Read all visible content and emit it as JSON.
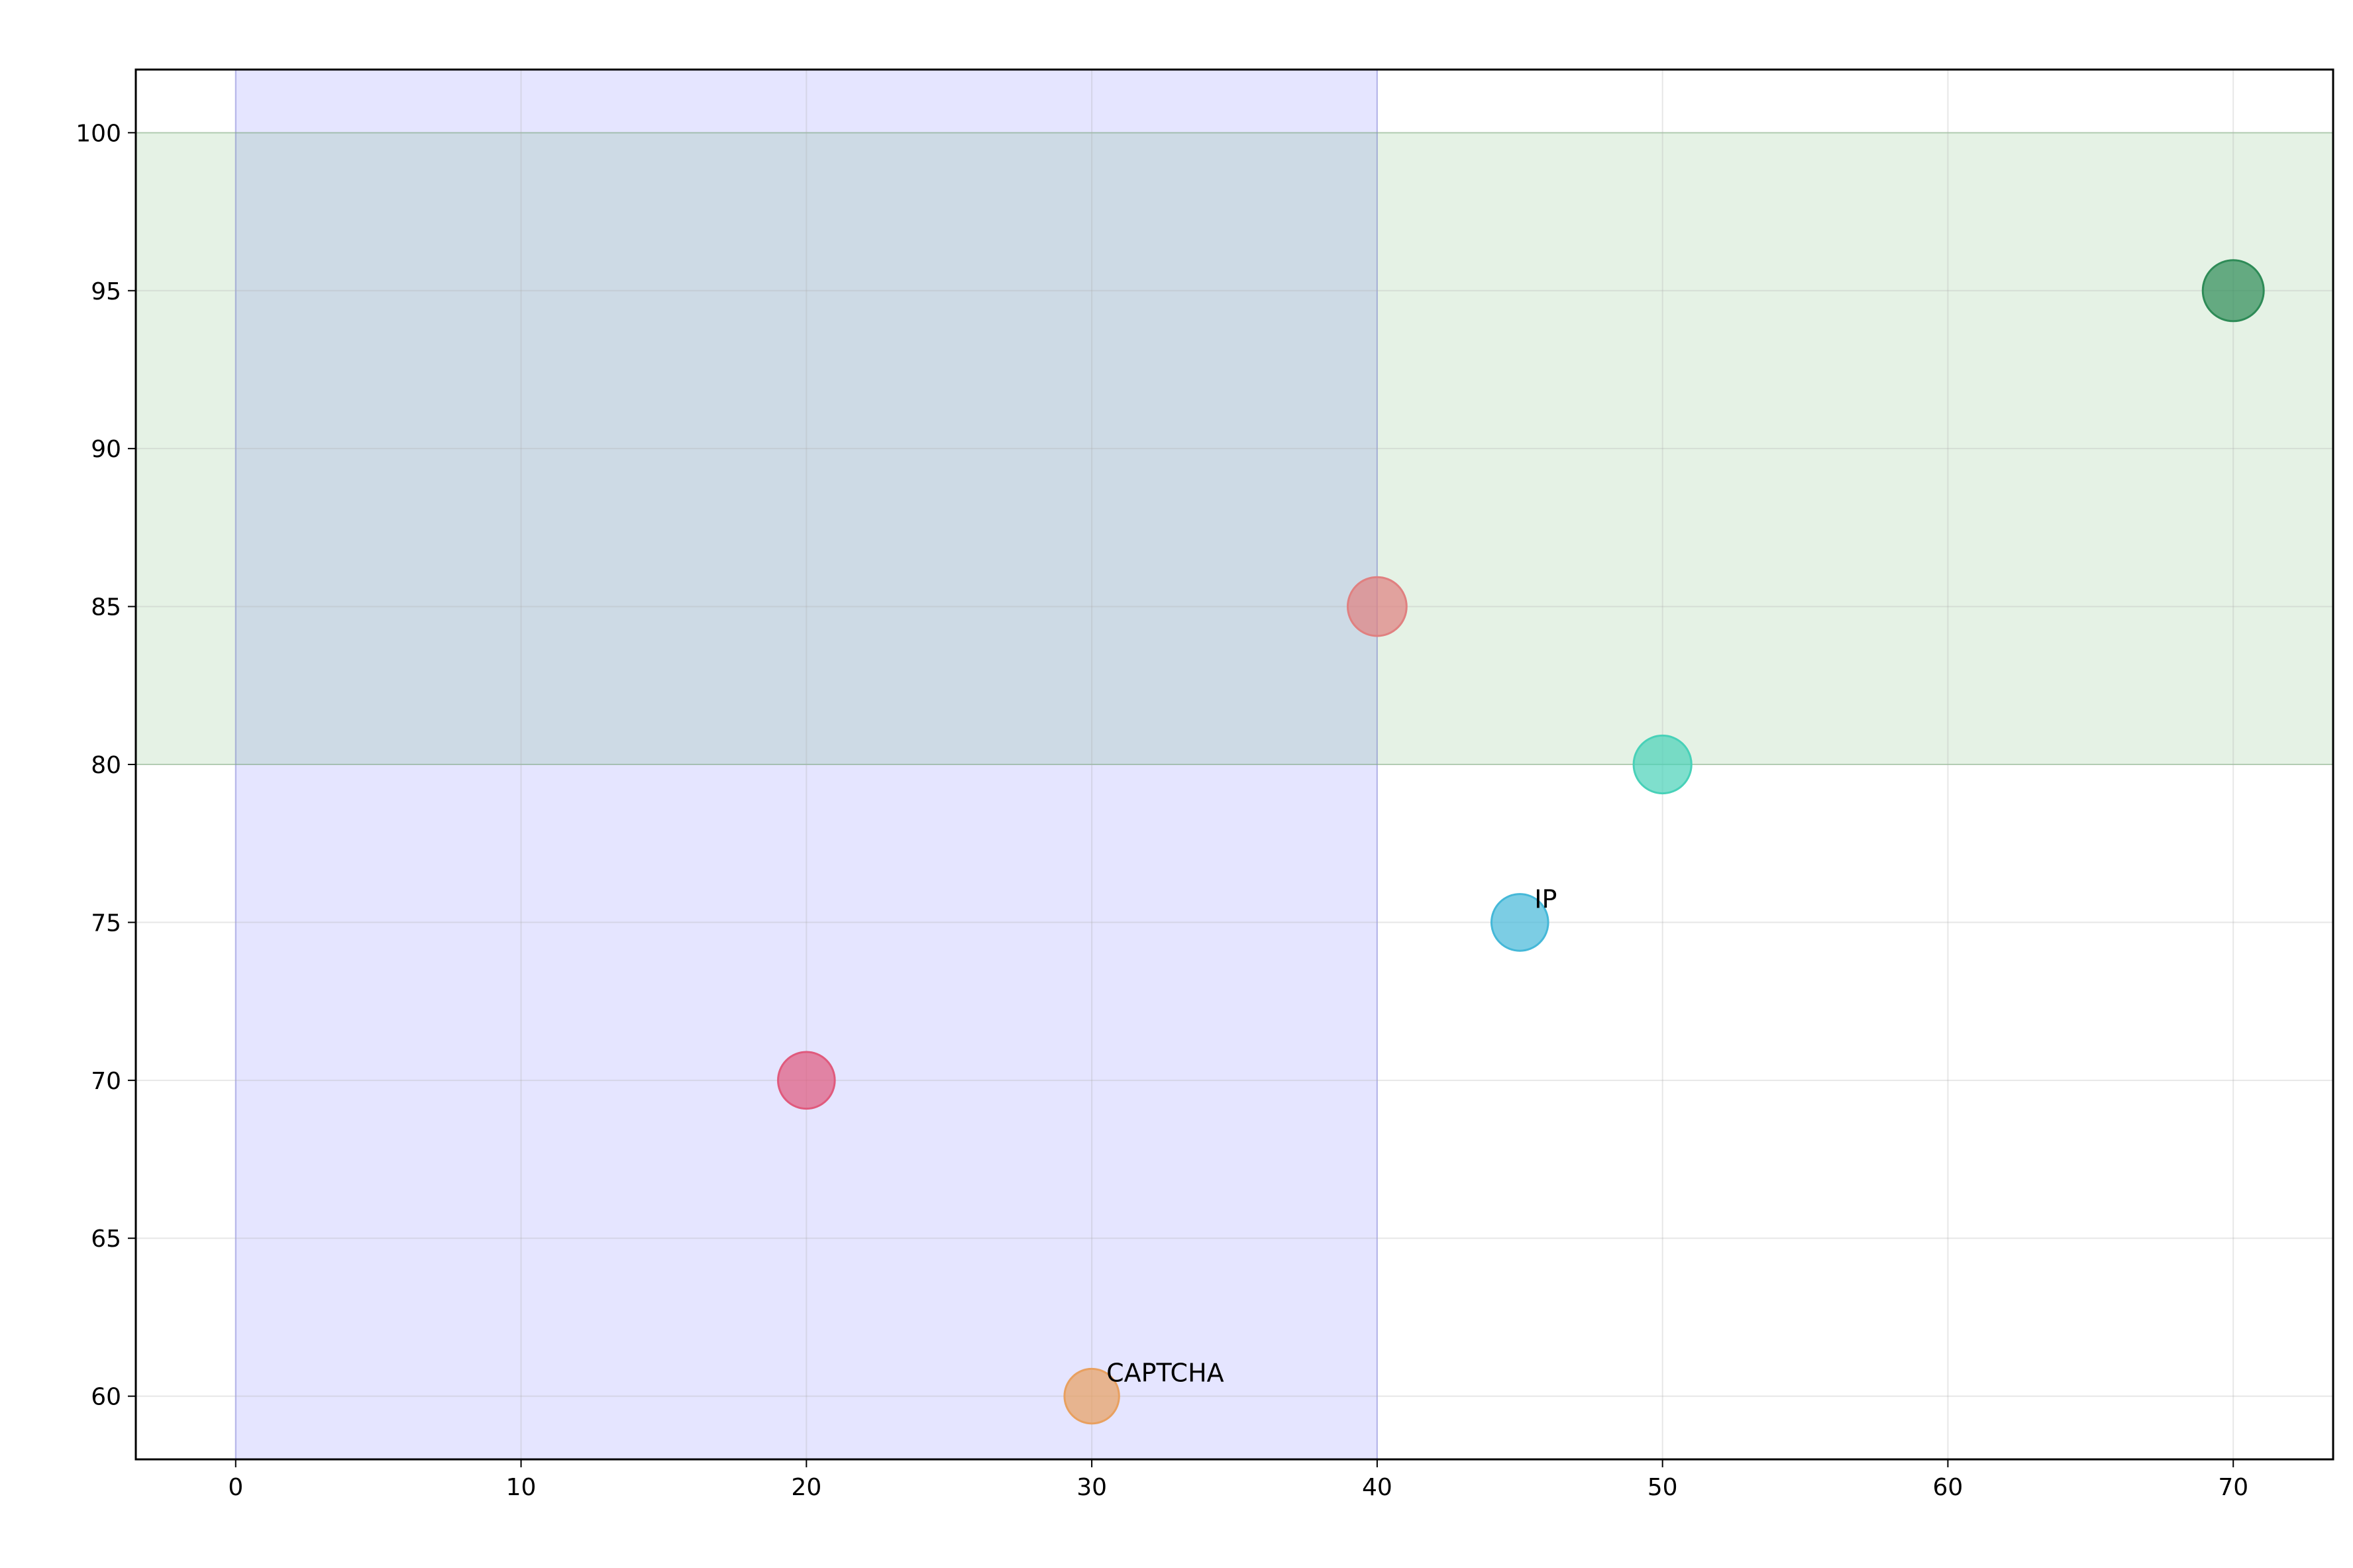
{
  "chart_data": {
    "type": "scatter",
    "title": "",
    "xlabel": "",
    "ylabel": "",
    "xlim": [
      -3.5,
      73.5
    ],
    "ylim": [
      58,
      102
    ],
    "xticks": [
      0,
      10,
      20,
      30,
      40,
      50,
      60,
      70
    ],
    "yticks": [
      60,
      65,
      70,
      75,
      80,
      85,
      90,
      95,
      100
    ],
    "grid": true,
    "shaded_regions": [
      {
        "axis": "x",
        "from": 0,
        "to": 40,
        "color": "#0000ff"
      },
      {
        "axis": "y",
        "from": 80,
        "to": 100,
        "color": "#008000"
      }
    ],
    "points": [
      {
        "label": "",
        "x": 70,
        "y": 95,
        "size": 1.0,
        "color": "#2e8b57"
      },
      {
        "label": "",
        "x": 40,
        "y": 85,
        "size": 0.9,
        "color": "#e08080"
      },
      {
        "label": "",
        "x": 50,
        "y": 80,
        "size": 0.85,
        "color": "#48d1b8"
      },
      {
        "label": "IP",
        "x": 45,
        "y": 75,
        "size": 0.8,
        "color": "#45b8d8"
      },
      {
        "label": "",
        "x": 20,
        "y": 70,
        "size": 0.8,
        "color": "#e05a7d"
      },
      {
        "label": "CAPTCHA",
        "x": 30,
        "y": 60,
        "size": 0.7,
        "color": "#e8a060"
      }
    ]
  }
}
